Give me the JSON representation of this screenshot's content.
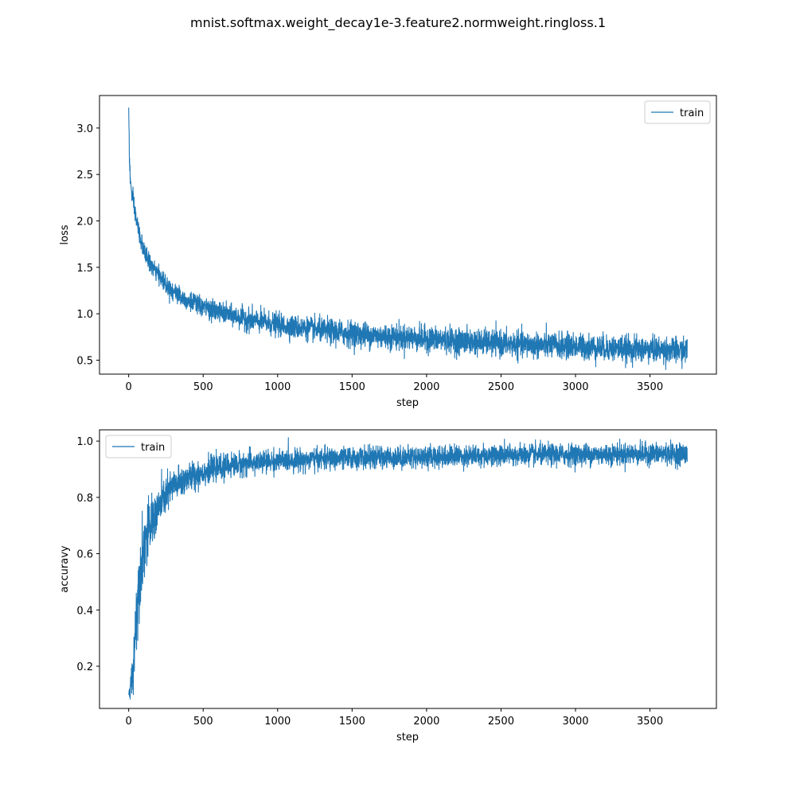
{
  "figure": {
    "title": "mnist.softmax.weight_decay1e-3.feature2.normweight.ringloss.1"
  },
  "colors": {
    "series": "#1f77b4",
    "axes": "#000000",
    "background": "#ffffff",
    "legend_border": "#cccccc"
  },
  "chart_data": [
    {
      "type": "line",
      "xlabel": "step",
      "ylabel": "loss",
      "xlim": [
        -196,
        3946
      ],
      "ylim": [
        0.35,
        3.35
      ],
      "xticks": [
        0,
        500,
        1000,
        1500,
        2000,
        2500,
        3000,
        3500
      ],
      "xtick_labels": [
        "0",
        "500",
        "1000",
        "1500",
        "2000",
        "2500",
        "3000",
        "3500"
      ],
      "yticks": [
        0.5,
        1.0,
        1.5,
        2.0,
        2.5,
        3.0
      ],
      "ytick_labels": [
        "0.5",
        "1.0",
        "1.5",
        "2.0",
        "2.5",
        "3.0"
      ],
      "grid": false,
      "legend": {
        "position": "upper right",
        "entries": [
          "train"
        ]
      },
      "series": [
        {
          "name": "train",
          "x": [
            0,
            5,
            10,
            20,
            40,
            60,
            80,
            100,
            150,
            200,
            250,
            300,
            400,
            500,
            600,
            700,
            800,
            900,
            1000,
            1200,
            1400,
            1600,
            1800,
            2000,
            2200,
            2400,
            2600,
            2800,
            3000,
            3200,
            3400,
            3600,
            3750
          ],
          "y": [
            3.22,
            2.7,
            2.45,
            2.3,
            2.1,
            1.95,
            1.8,
            1.68,
            1.52,
            1.42,
            1.32,
            1.24,
            1.14,
            1.07,
            1.02,
            0.98,
            0.94,
            0.91,
            0.88,
            0.84,
            0.8,
            0.77,
            0.75,
            0.73,
            0.71,
            0.69,
            0.67,
            0.66,
            0.65,
            0.63,
            0.62,
            0.61,
            0.6
          ],
          "noise": [
            0,
            0.08,
            0.08,
            0.07,
            0.07,
            0.07,
            0.07,
            0.06,
            0.06,
            0.06,
            0.07,
            0.07,
            0.07,
            0.07,
            0.07,
            0.07,
            0.08,
            0.08,
            0.08,
            0.08,
            0.09,
            0.09,
            0.09,
            0.09,
            0.09,
            0.09,
            0.09,
            0.09,
            0.09,
            0.09,
            0.09,
            0.09,
            0.09
          ],
          "total_steps": 3750
        }
      ]
    },
    {
      "type": "line",
      "xlabel": "step",
      "ylabel": "accuravy",
      "xlim": [
        -196,
        3946
      ],
      "ylim": [
        0.05,
        1.04
      ],
      "xticks": [
        0,
        500,
        1000,
        1500,
        2000,
        2500,
        3000,
        3500
      ],
      "xtick_labels": [
        "0",
        "500",
        "1000",
        "1500",
        "2000",
        "2500",
        "3000",
        "3500"
      ],
      "yticks": [
        0.2,
        0.4,
        0.6,
        0.8,
        1.0
      ],
      "ytick_labels": [
        "0.2",
        "0.4",
        "0.6",
        "0.8",
        "1.0"
      ],
      "grid": false,
      "legend": {
        "position": "upper left",
        "entries": [
          "train"
        ]
      },
      "series": [
        {
          "name": "train",
          "x": [
            0,
            10,
            20,
            30,
            40,
            50,
            60,
            80,
            100,
            120,
            150,
            200,
            250,
            300,
            400,
            500,
            600,
            700,
            800,
            1000,
            1200,
            1500,
            2000,
            2500,
            3000,
            3500,
            3750
          ],
          "y": [
            0.1,
            0.12,
            0.15,
            0.2,
            0.28,
            0.38,
            0.45,
            0.55,
            0.62,
            0.66,
            0.7,
            0.76,
            0.81,
            0.84,
            0.87,
            0.89,
            0.905,
            0.915,
            0.922,
            0.93,
            0.935,
            0.94,
            0.945,
            0.95,
            0.952,
            0.955,
            0.955
          ],
          "noise": [
            0.02,
            0.03,
            0.04,
            0.06,
            0.08,
            0.08,
            0.08,
            0.08,
            0.08,
            0.07,
            0.06,
            0.05,
            0.045,
            0.04,
            0.035,
            0.03,
            0.028,
            0.028,
            0.028,
            0.025,
            0.025,
            0.025,
            0.025,
            0.025,
            0.025,
            0.025,
            0.025
          ],
          "total_steps": 3750
        }
      ]
    }
  ]
}
